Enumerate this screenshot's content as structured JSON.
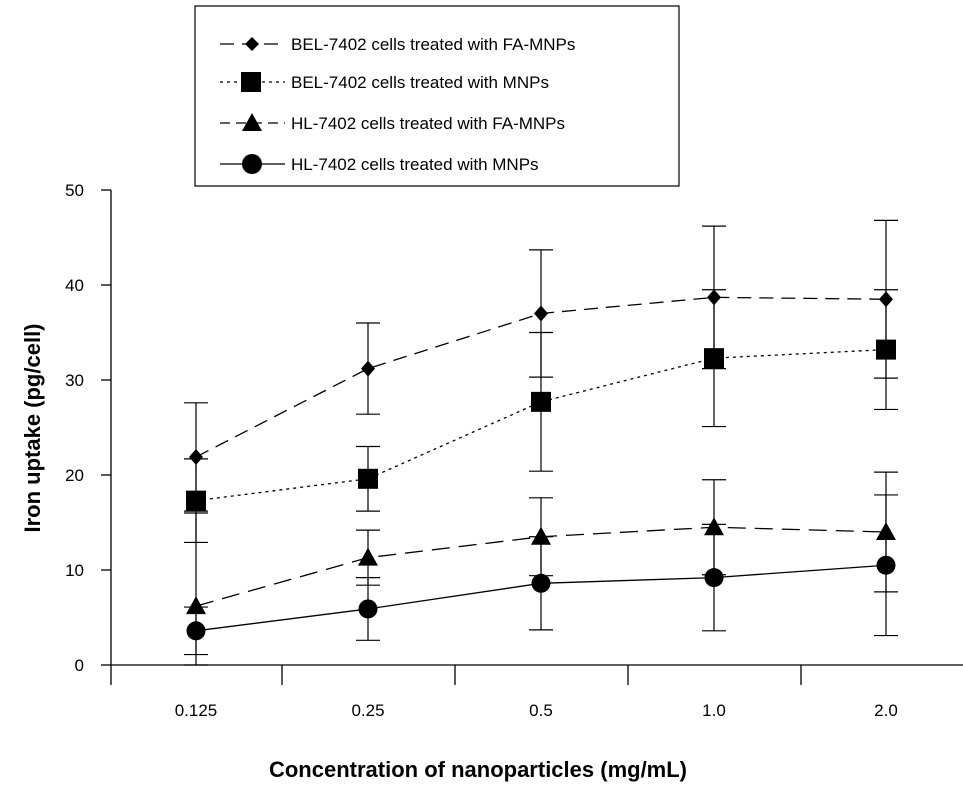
{
  "chart_data": {
    "type": "line",
    "xlabel": "Concentration of nanoparticles (mg/mL)",
    "ylabel": "Iron uptake (pg/cell)",
    "categories": [
      "0.125",
      "0.25",
      "0.5",
      "1.0",
      "2.0"
    ],
    "ylim": [
      0,
      50
    ],
    "yticks": [
      0,
      10,
      20,
      30,
      40,
      50
    ],
    "grid": false,
    "legend_position": "top",
    "series": [
      {
        "name": "BEL-7402 cells treated with FA-MNPs",
        "marker": "diamond",
        "line_style": "long-dash",
        "values": [
          21.9,
          31.2,
          37.0,
          38.7,
          38.5
        ],
        "error": [
          5.7,
          4.8,
          6.7,
          7.5,
          8.3
        ]
      },
      {
        "name": "BEL-7402 cells treated with MNPs",
        "marker": "square",
        "line_style": "dotted",
        "values": [
          17.3,
          19.6,
          27.7,
          32.3,
          33.2
        ],
        "error": [
          4.4,
          3.4,
          7.3,
          7.2,
          6.3
        ]
      },
      {
        "name": "HL-7402 cells treated with FA-MNPs",
        "marker": "triangle",
        "line_style": "dash",
        "values": [
          6.2,
          11.3,
          13.5,
          14.5,
          14.0
        ],
        "error": [
          9.8,
          2.9,
          4.1,
          5.0,
          6.3
        ]
      },
      {
        "name": "HL-7402 cells treated with MNPs",
        "marker": "circle",
        "line_style": "solid",
        "values": [
          3.6,
          5.9,
          8.6,
          9.2,
          10.5
        ],
        "error": [
          2.5,
          3.3,
          4.9,
          5.6,
          7.4
        ]
      }
    ]
  }
}
